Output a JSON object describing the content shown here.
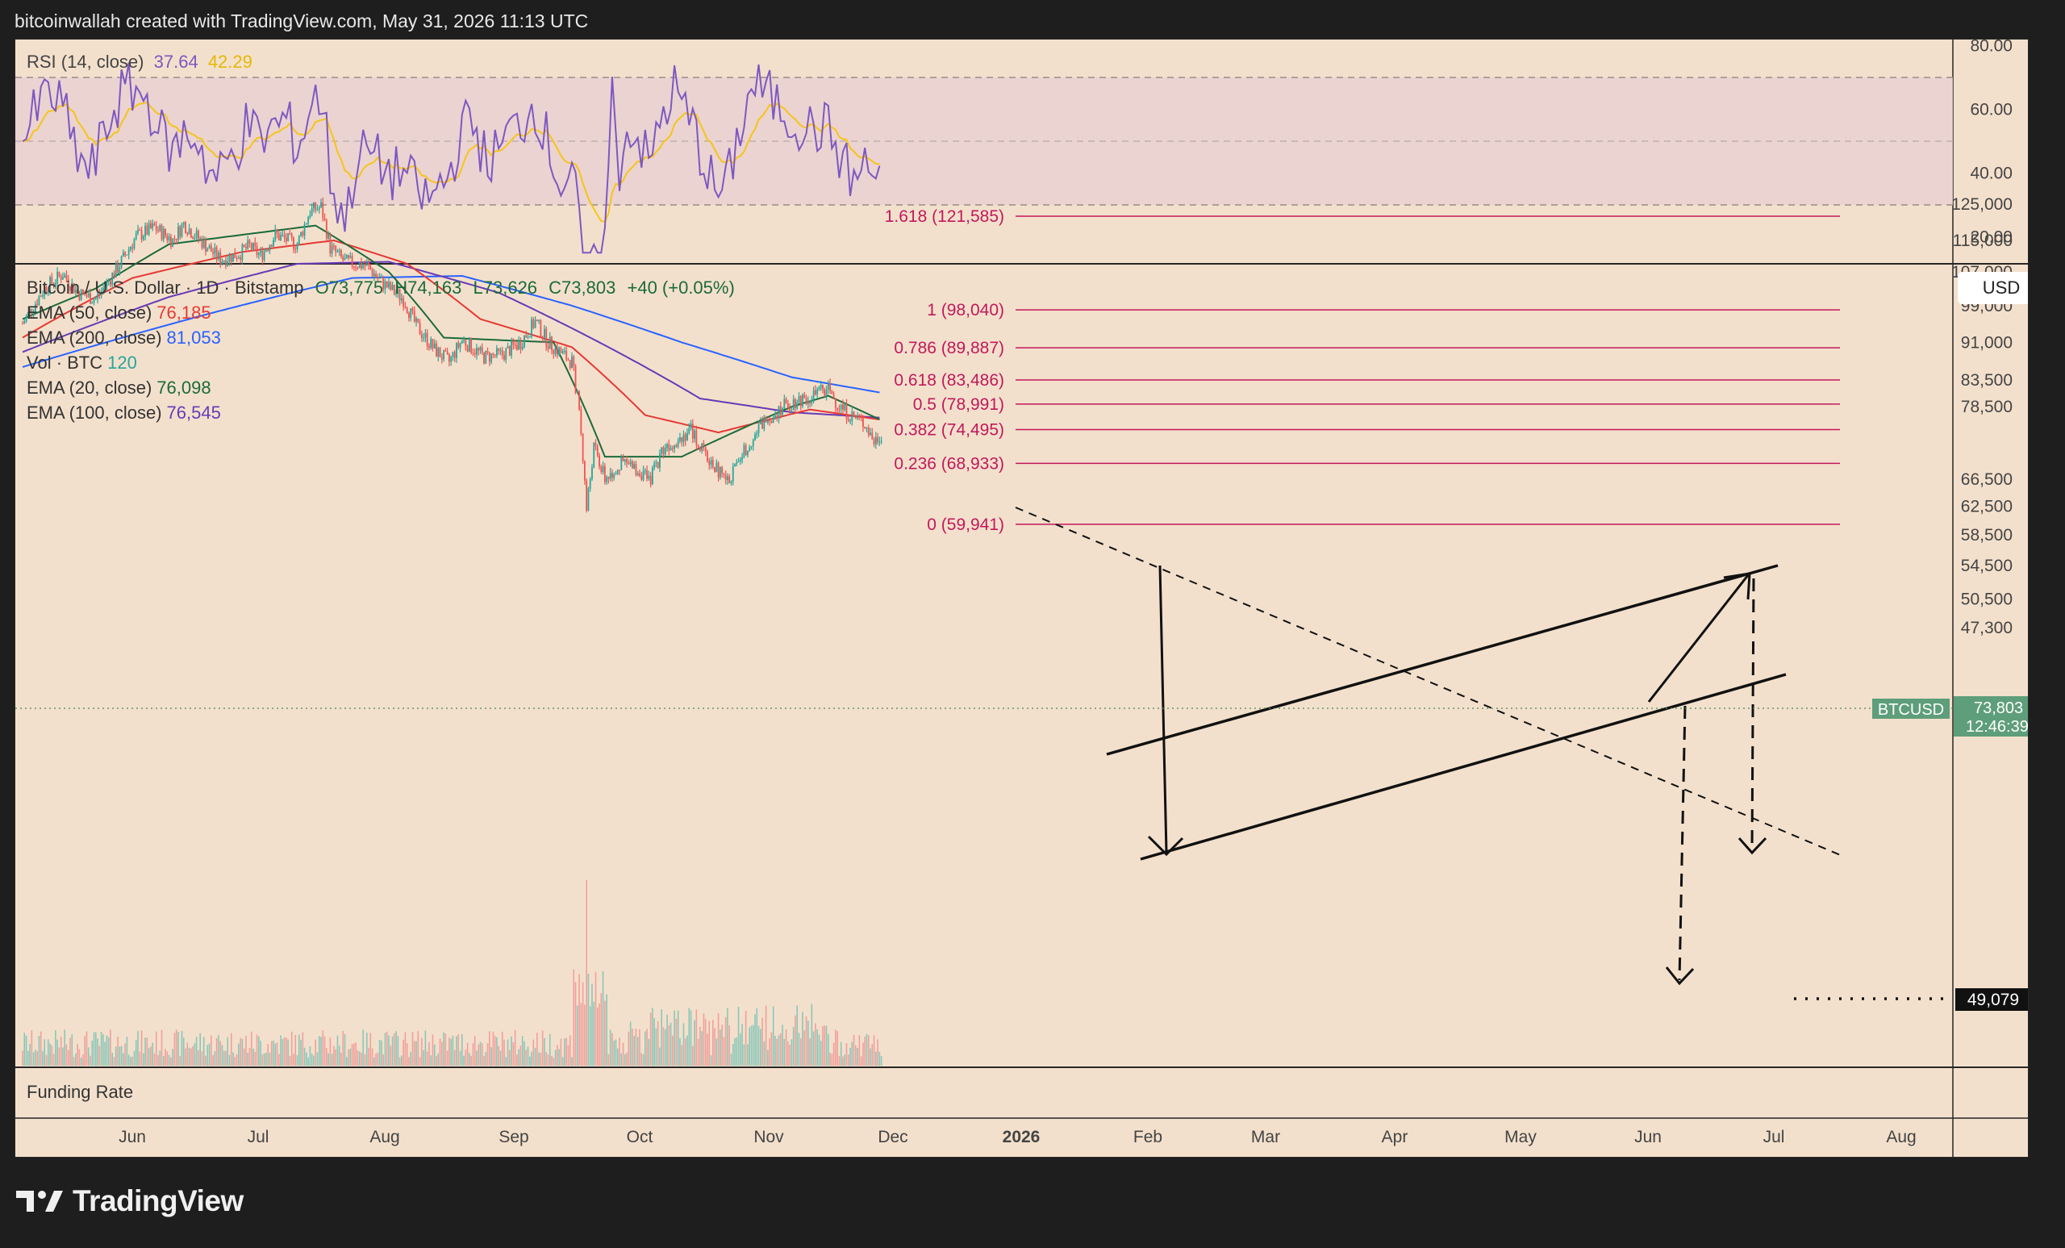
{
  "header": "bitcoinwallah created with TradingView.com, May 31, 2026 11:13 UTC",
  "logo_text": "TradingView",
  "rsi": {
    "label": "RSI (14, close)",
    "value": "37.64",
    "ma_value": "42.29",
    "ticks": [
      "80.00",
      "60.00",
      "40.00",
      "20.00"
    ],
    "colors": {
      "rsi": "#7e57c2",
      "ma": "#f5c518",
      "band": "#e8cfd2"
    }
  },
  "main": {
    "title": "Bitcoin / U.S. Dollar · 1D · Bitstamp",
    "ohlc": {
      "o": "O73,775",
      "h": "H74,163",
      "l": "L73,626",
      "c": "C73,803",
      "chg": "+40 (+0.05%)"
    },
    "indicators": [
      {
        "label": "EMA (50, close)",
        "value": "76,185",
        "color": "#e53935"
      },
      {
        "label": "EMA (200, close)",
        "value": "81,053",
        "color": "#2962ff"
      },
      {
        "label": "Vol · BTC",
        "value": "120",
        "color": "#26a69a"
      },
      {
        "label": "EMA (20, close)",
        "value": "76,098",
        "color": "#1b6b3a"
      },
      {
        "label": "EMA (100, close)",
        "value": "76,545",
        "color": "#673ab7"
      }
    ],
    "currency": "USD",
    "price_badge": {
      "symbol": "BTCUSD",
      "price": "73,803",
      "countdown": "12:46:39"
    },
    "target_badge": "49,079",
    "funding_label": "Funding Rate"
  },
  "chart_data": {
    "type": "candlestick",
    "price_ticks": [
      "125,000",
      "115,000",
      "107,000",
      "99,000",
      "91,000",
      "83,500",
      "78,500",
      "73,803",
      "66,500",
      "62,500",
      "58,500",
      "54,500",
      "50,500",
      "47,300"
    ],
    "x_ticks": [
      "Jun",
      "Jul",
      "Aug",
      "Sep",
      "Oct",
      "Nov",
      "Dec",
      "2026",
      "Feb",
      "Mar",
      "Apr",
      "May",
      "Jun",
      "Jul",
      "Aug"
    ],
    "fib_levels": [
      {
        "label": "1.618 (121,585)",
        "price": 121585
      },
      {
        "label": "1 (98,040)",
        "price": 98040
      },
      {
        "label": "0.786 (89,887)",
        "price": 89887
      },
      {
        "label": "0.618 (83,486)",
        "price": 83486
      },
      {
        "label": "0.5 (78,991)",
        "price": 78991
      },
      {
        "label": "0.382 (74,495)",
        "price": 74495
      },
      {
        "label": "0.236 (68,933)",
        "price": 68933
      },
      {
        "label": "0 (59,941)",
        "price": 59941
      }
    ],
    "price_path": [
      [
        0,
        95000
      ],
      [
        12,
        103000
      ],
      [
        22,
        106500
      ],
      [
        30,
        102000
      ],
      [
        40,
        100500
      ],
      [
        52,
        108000
      ],
      [
        62,
        116000
      ],
      [
        72,
        118500
      ],
      [
        82,
        115000
      ],
      [
        88,
        119500
      ],
      [
        95,
        116000
      ],
      [
        108,
        110000
      ],
      [
        118,
        111500
      ],
      [
        124,
        113500
      ],
      [
        130,
        111000
      ],
      [
        138,
        116500
      ],
      [
        150,
        114000
      ],
      [
        157,
        123000
      ],
      [
        163,
        124200
      ],
      [
        168,
        113000
      ],
      [
        176,
        109500
      ],
      [
        188,
        108500
      ],
      [
        196,
        104500
      ],
      [
        208,
        100500
      ],
      [
        215,
        94500
      ],
      [
        225,
        89500
      ],
      [
        233,
        87000
      ],
      [
        240,
        91500
      ],
      [
        252,
        88000
      ],
      [
        262,
        88500
      ],
      [
        272,
        91000
      ],
      [
        280,
        95500
      ],
      [
        287,
        91000
      ],
      [
        300,
        87000
      ],
      [
        304,
        78000
      ],
      [
        308,
        62000
      ],
      [
        312,
        71500
      ],
      [
        318,
        66500
      ],
      [
        328,
        69000
      ],
      [
        338,
        67500
      ],
      [
        342,
        66000
      ],
      [
        350,
        71500
      ],
      [
        358,
        73000
      ],
      [
        365,
        74500
      ],
      [
        372,
        70500
      ],
      [
        385,
        66000
      ],
      [
        392,
        70000
      ],
      [
        405,
        76000
      ],
      [
        415,
        78500
      ],
      [
        425,
        80000
      ],
      [
        432,
        80500
      ],
      [
        440,
        82000
      ],
      [
        445,
        79000
      ],
      [
        452,
        77000
      ],
      [
        460,
        75500
      ],
      [
        465,
        72500
      ],
      [
        469,
        73803
      ]
    ],
    "ema20_path": [
      [
        0,
        96000
      ],
      [
        40,
        103000
      ],
      [
        80,
        114000
      ],
      [
        160,
        119000
      ],
      [
        200,
        107000
      ],
      [
        230,
        92000
      ],
      [
        290,
        91000
      ],
      [
        318,
        70000
      ],
      [
        360,
        70000
      ],
      [
        420,
        78500
      ],
      [
        440,
        80500
      ],
      [
        469,
        76098
      ]
    ],
    "ema50_path": [
      [
        0,
        92000
      ],
      [
        60,
        105500
      ],
      [
        120,
        112000
      ],
      [
        170,
        115000
      ],
      [
        210,
        109000
      ],
      [
        250,
        96000
      ],
      [
        300,
        90000
      ],
      [
        340,
        77000
      ],
      [
        380,
        74000
      ],
      [
        430,
        78000
      ],
      [
        469,
        76185
      ]
    ],
    "ema100_path": [
      [
        0,
        89000
      ],
      [
        80,
        101000
      ],
      [
        150,
        109000
      ],
      [
        200,
        109500
      ],
      [
        260,
        102000
      ],
      [
        320,
        90000
      ],
      [
        370,
        80000
      ],
      [
        420,
        77500
      ],
      [
        469,
        76545
      ]
    ],
    "ema200_path": [
      [
        0,
        86000
      ],
      [
        100,
        97000
      ],
      [
        180,
        105500
      ],
      [
        240,
        106000
      ],
      [
        300,
        99000
      ],
      [
        360,
        91000
      ],
      [
        420,
        84000
      ],
      [
        469,
        81053
      ]
    ]
  }
}
